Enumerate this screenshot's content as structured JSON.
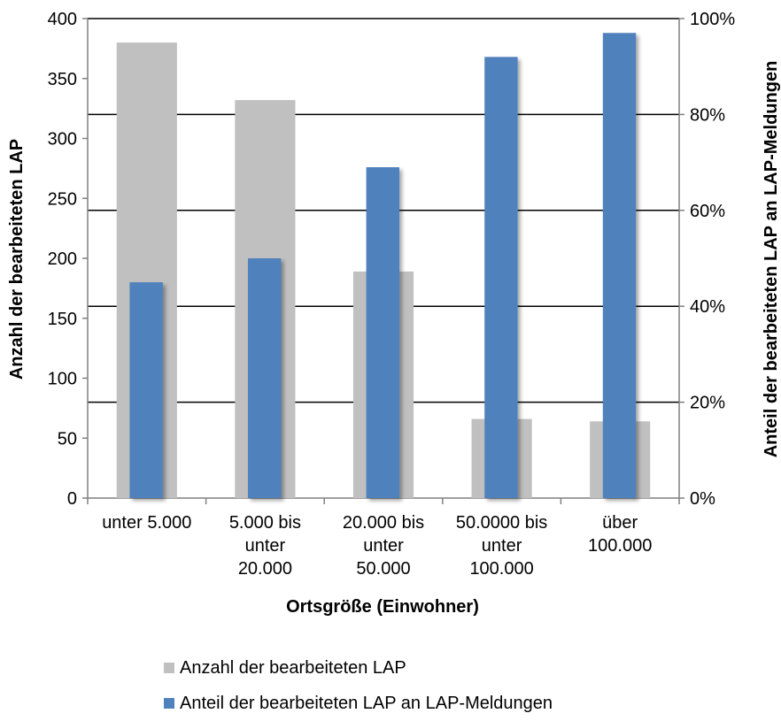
{
  "chart_data": {
    "type": "bar",
    "xlabel": "Ortsgröße (Einwohner)",
    "ylabel": "Anzahl der bearbeiteten LAP",
    "y2label": "Anteil der bearbeiteten LAP an LAP-Meldungen",
    "categories": [
      [
        "unter 5.000"
      ],
      [
        "5.000 bis",
        "unter",
        "20.000"
      ],
      [
        "20.000 bis",
        "unter",
        "50.000"
      ],
      [
        "50.0000 bis",
        "unter",
        "100.000"
      ],
      [
        "über",
        "100.000"
      ]
    ],
    "ylim": [
      0,
      400
    ],
    "yticks": [
      "0",
      "50",
      "100",
      "150",
      "200",
      "250",
      "300",
      "350",
      "400"
    ],
    "y2lim": [
      0,
      100
    ],
    "y2ticks": [
      "0%",
      "20%",
      "40%",
      "60%",
      "80%",
      "100%"
    ],
    "series": [
      {
        "name": "Anzahl der bearbeiteten LAP",
        "axis": "left",
        "color": "#c0c0c0",
        "values": [
          380,
          332,
          189,
          66,
          64
        ]
      },
      {
        "name": "Anteil der bearbeiteten LAP an LAP-Meldungen",
        "axis": "right",
        "color": "#4f81bd",
        "values": [
          45,
          50,
          69,
          92,
          97
        ]
      }
    ],
    "grid": true,
    "legend_position": "bottom"
  }
}
